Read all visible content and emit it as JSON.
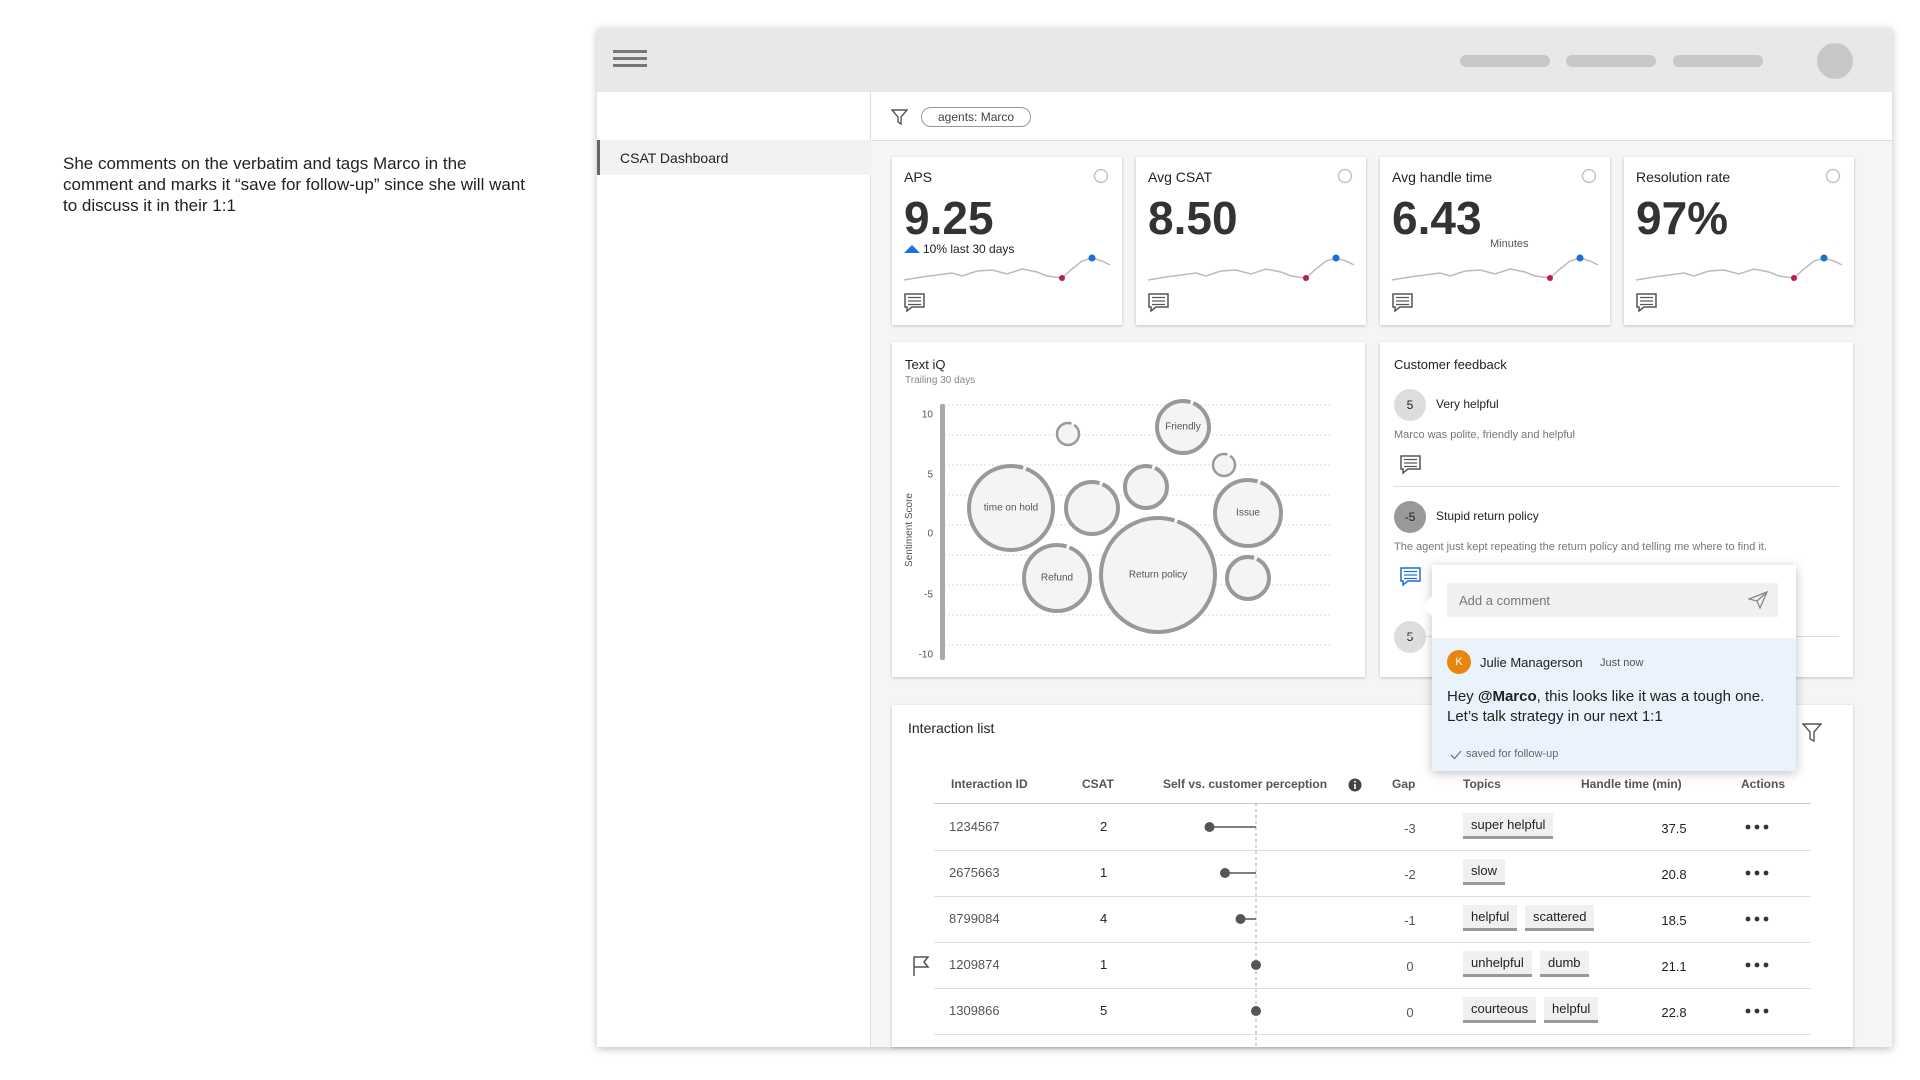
{
  "annotation": "She comments on the verbatim and tags Marco in the comment and marks it “save for follow-up” since she will want to discuss it in their 1:1",
  "sidebar": {
    "items": [
      "CSAT Dashboard"
    ]
  },
  "filter": {
    "chip": "agents: Marco"
  },
  "kpis": [
    {
      "label": "APS",
      "value": "9.25",
      "note": "10% last 30 days"
    },
    {
      "label": "Avg CSAT",
      "value": "8.50"
    },
    {
      "label": "Avg handle time",
      "value": "6.43",
      "unit": "Minutes"
    },
    {
      "label": "Resolution rate",
      "value": "97%"
    }
  ],
  "text_iq": {
    "title": "Text iQ",
    "subtitle": "Trailing 30 days",
    "y_label": "Sentiment Score",
    "yticks": [
      "10",
      "5",
      "0",
      "-5",
      "-10"
    ],
    "bubbles": [
      "Friendly",
      "time on hold",
      "Issue",
      "Refund",
      "Return policy"
    ]
  },
  "feedback": {
    "title": "Customer feedback",
    "items": [
      {
        "score": "5",
        "title": "Very helpful",
        "text": "Marco was polite, friendly and helpful"
      },
      {
        "score": "-5",
        "title": "Stupid return policy",
        "text": "The agent just kept repeating the return policy and telling me where to find it."
      },
      {
        "score": "5"
      }
    ]
  },
  "comment": {
    "placeholder": "Add a comment",
    "author_initial": "K",
    "author": "Julie Managerson",
    "time": "Just now",
    "message_parts": [
      "Hey ",
      "@Marco",
      ", this looks like it was a tough one. Let’s talk strategy in our next 1:1"
    ],
    "status": "saved for follow-up"
  },
  "interactions": {
    "title": "Interaction list",
    "columns": [
      "Interaction ID",
      "CSAT",
      "Self vs. customer perception",
      "Gap",
      "Topics",
      "Handle time (min)",
      "Actions"
    ],
    "rows": [
      {
        "id": "1234567",
        "csat": 2,
        "gap": -3,
        "topics": [
          "super helpful"
        ],
        "handle_time": 37.5,
        "flagged": false
      },
      {
        "id": "2675663",
        "csat": 1,
        "gap": -2,
        "topics": [
          "slow"
        ],
        "handle_time": 20.8,
        "flagged": false
      },
      {
        "id": "8799084",
        "csat": 4,
        "gap": -1,
        "topics": [
          "helpful",
          "scattered"
        ],
        "handle_time": 18.5,
        "flagged": false
      },
      {
        "id": "1209874",
        "csat": 1,
        "gap": 0,
        "topics": [
          "unhelpful",
          "dumb"
        ],
        "handle_time": 21.1,
        "flagged": true
      },
      {
        "id": "1309866",
        "csat": 5,
        "gap": 0,
        "topics": [
          "courteous",
          "helpful"
        ],
        "handle_time": 22.8,
        "flagged": false
      }
    ]
  }
}
